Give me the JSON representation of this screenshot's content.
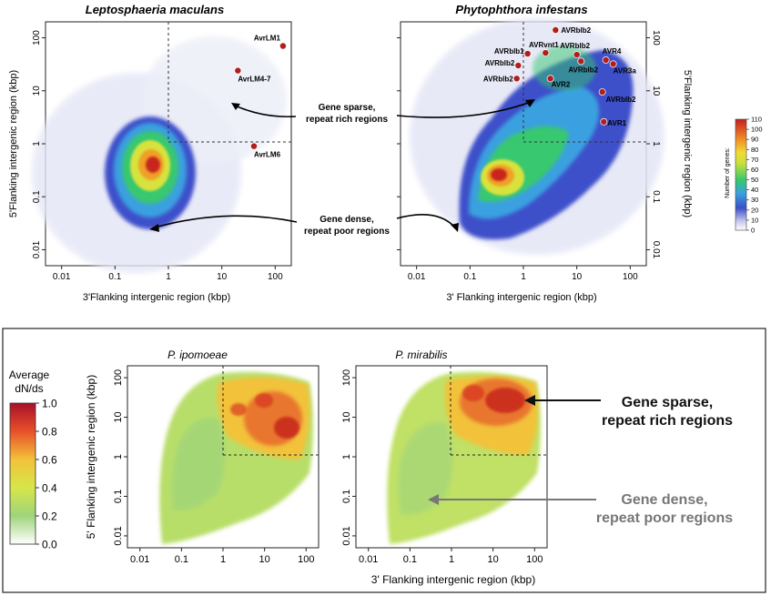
{
  "top": {
    "panels": [
      {
        "title": "Leptosphaeria maculans",
        "xlabel": "3'Flanking intergenic region (kbp)",
        "ylabel": "5'Flanking intergenic region (kbp)",
        "ticks": [
          "0.01",
          "0.1",
          "1",
          "10",
          "100"
        ],
        "points": [
          {
            "label": "AvrLM1",
            "x": 140,
            "y": 70
          },
          {
            "label": "AvrLM4-7",
            "x": 20,
            "y": 24
          },
          {
            "label": "AvrLM6",
            "x": 40,
            "y": 0.9
          }
        ]
      },
      {
        "title": "Phytophthora infestans",
        "xlabel": "3' Flanking intergenic region (kbp)",
        "ylabel": "5'Flanking intergenic region (kbp)",
        "ticks": [
          "0.01",
          "0.1",
          "1",
          "10",
          "100"
        ],
        "points": [
          {
            "label": "AVRblb2",
            "x": 4,
            "y": 140
          },
          {
            "label": "AVRblb1",
            "x": 1.2,
            "y": 50
          },
          {
            "label": "AVRvnt1",
            "x": 2.6,
            "y": 52
          },
          {
            "label": "AVRblb2",
            "x": 10,
            "y": 48
          },
          {
            "label": "AVR4",
            "x": 35,
            "y": 38
          },
          {
            "label": "AVRblb2",
            "x": 0.8,
            "y": 30
          },
          {
            "label": "AVRblb2",
            "x": 12,
            "y": 36
          },
          {
            "label": "AVR3a",
            "x": 48,
            "y": 32
          },
          {
            "label": "AVRblb2",
            "x": 0.75,
            "y": 17
          },
          {
            "label": "AVR2",
            "x": 3.2,
            "y": 17
          },
          {
            "label": "AVRblb2",
            "x": 30,
            "y": 9.5
          },
          {
            "label": "AVR1",
            "x": 32,
            "y": 2.6
          }
        ]
      }
    ],
    "annotations": {
      "sparse": [
        "Gene sparse,",
        "repeat rich regions"
      ],
      "dense": [
        "Gene dense,",
        "repeat poor regions"
      ]
    },
    "colorbar": {
      "label": "Number of genes:",
      "ticks": [
        "110",
        "100",
        "90",
        "80",
        "70",
        "60",
        "50",
        "40",
        "30",
        "20",
        "10",
        "0"
      ]
    }
  },
  "bottom": {
    "colorbar": {
      "title_line1": "Average",
      "title_line2": "dN/ds",
      "ticks": [
        "1.0",
        "0.8",
        "0.6",
        "0.4",
        "0.2",
        "0.0"
      ]
    },
    "panels": [
      {
        "title": "P. ipomoeae"
      },
      {
        "title": "P. mirabilis"
      }
    ],
    "ylabel": "5' Flanking intergenic region (kbp)",
    "xlabel": "3' Flanking intergenic region (kbp)",
    "ticks": [
      "0.01",
      "0.1",
      "1",
      "10",
      "100"
    ],
    "annotations": {
      "sparse": [
        "Gene sparse,",
        "repeat rich regions"
      ],
      "dense": [
        "Gene dense,",
        "repeat poor regions"
      ]
    }
  },
  "colors": {
    "point": "#b01e1e",
    "annot_dark": "#111111",
    "annot_gray": "#777777"
  },
  "chart_data": [
    {
      "type": "heatmap",
      "title": "Leptosphaeria maculans",
      "xlabel": "3'Flanking intergenic region (kbp)",
      "ylabel": "5'Flanking intergenic region (kbp)",
      "xlim": [
        0.005,
        200
      ],
      "ylim": [
        0.005,
        200
      ],
      "xscale": "log",
      "yscale": "log",
      "legend_label": "Number of genes:",
      "legend_range": [
        0,
        110
      ],
      "threshold_lines": {
        "x": 1,
        "y": 1
      },
      "points": [
        {
          "label": "AvrLM1",
          "x": 140,
          "y": 70
        },
        {
          "label": "AvrLM4-7",
          "x": 20,
          "y": 24
        },
        {
          "label": "AvrLM6",
          "x": 40,
          "y": 0.9
        }
      ]
    },
    {
      "type": "heatmap",
      "title": "Phytophthora infestans",
      "xlabel": "3' Flanking intergenic region (kbp)",
      "ylabel": "5'Flanking intergenic region (kbp)",
      "xlim": [
        0.005,
        200
      ],
      "ylim": [
        0.005,
        200
      ],
      "xscale": "log",
      "yscale": "log",
      "legend_label": "Number of genes:",
      "legend_range": [
        0,
        110
      ],
      "threshold_lines": {
        "x": 1,
        "y": 1
      },
      "points": [
        {
          "label": "AVRblb2",
          "x": 4,
          "y": 140
        },
        {
          "label": "AVRblb1",
          "x": 1.2,
          "y": 50
        },
        {
          "label": "AVRvnt1",
          "x": 2.6,
          "y": 52
        },
        {
          "label": "AVRblb2",
          "x": 10,
          "y": 48
        },
        {
          "label": "AVR4",
          "x": 35,
          "y": 38
        },
        {
          "label": "AVRblb2",
          "x": 0.8,
          "y": 30
        },
        {
          "label": "AVRblb2",
          "x": 12,
          "y": 36
        },
        {
          "label": "AVR3a",
          "x": 48,
          "y": 32
        },
        {
          "label": "AVRblb2",
          "x": 0.75,
          "y": 17
        },
        {
          "label": "AVR2",
          "x": 3.2,
          "y": 17
        },
        {
          "label": "AVRblb2",
          "x": 30,
          "y": 9.5
        },
        {
          "label": "AVR1",
          "x": 32,
          "y": 2.6
        }
      ]
    },
    {
      "type": "heatmap",
      "title": "P. ipomoeae",
      "xlabel": "3' Flanking intergenic region (kbp)",
      "ylabel": "5' Flanking intergenic region (kbp)",
      "xlim": [
        0.005,
        200
      ],
      "ylim": [
        0.005,
        200
      ],
      "xscale": "log",
      "yscale": "log",
      "legend_label": "Average dN/ds",
      "legend_range": [
        0.0,
        1.0
      ],
      "threshold_lines": {
        "x": 1,
        "y": 1
      }
    },
    {
      "type": "heatmap",
      "title": "P. mirabilis",
      "xlabel": "3' Flanking intergenic region (kbp)",
      "ylabel": "5' Flanking intergenic region (kbp)",
      "xlim": [
        0.005,
        200
      ],
      "ylim": [
        0.005,
        200
      ],
      "xscale": "log",
      "yscale": "log",
      "legend_label": "Average dN/ds",
      "legend_range": [
        0.0,
        1.0
      ],
      "threshold_lines": {
        "x": 1,
        "y": 1
      }
    }
  ]
}
